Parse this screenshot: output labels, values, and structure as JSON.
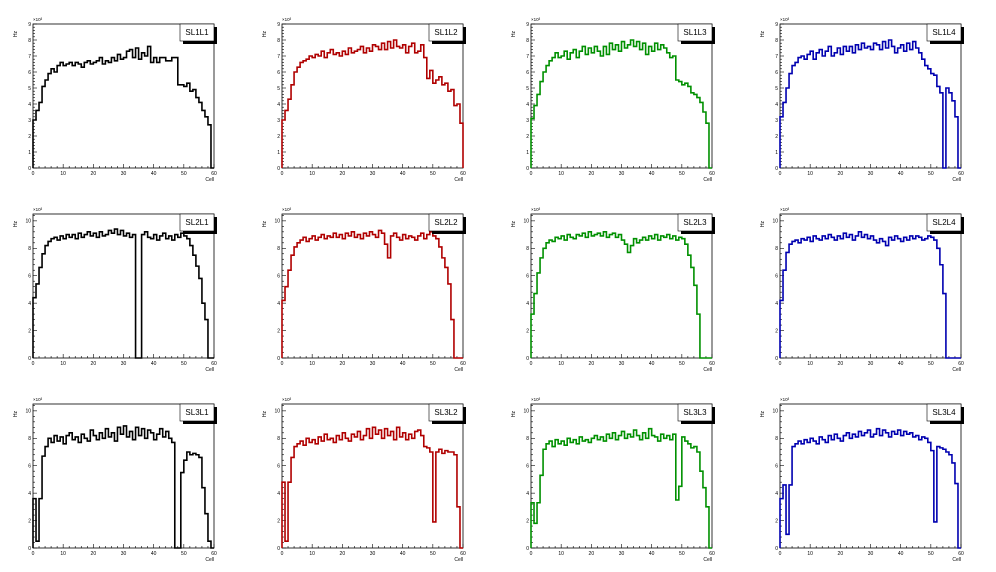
{
  "figure": {
    "xlabel": "Cell",
    "ylabel": "Hz",
    "exponent": "×10³"
  },
  "chart_data": [
    {
      "type": "histogram",
      "title": "SL1L1",
      "color": "#000000",
      "xlabel": "Cell",
      "ylabel": "Hz",
      "xlim": [
        0,
        60
      ],
      "ylim": [
        0,
        9
      ],
      "xticks": [
        0,
        10,
        20,
        30,
        40,
        50,
        60
      ],
      "yticks": [
        1,
        2,
        3,
        4,
        5,
        6,
        7,
        8,
        9
      ],
      "multiplier": "×10³",
      "values": [
        3.0,
        3.6,
        4.1,
        5.1,
        5.5,
        5.9,
        6.2,
        6.0,
        6.4,
        6.6,
        6.4,
        6.5,
        6.6,
        6.4,
        6.6,
        6.5,
        6.3,
        6.6,
        6.7,
        6.5,
        6.6,
        6.7,
        6.9,
        6.5,
        6.7,
        6.6,
        6.9,
        6.7,
        7.1,
        6.8,
        6.9,
        7.3,
        7.4,
        6.9,
        7.5,
        6.8,
        7.2,
        7.0,
        7.6,
        6.6,
        6.9,
        6.6,
        6.9,
        6.9,
        6.7,
        6.7,
        6.9,
        6.9,
        5.2,
        5.2,
        5.1,
        5.3,
        4.8,
        4.9,
        4.4,
        4.1,
        3.6,
        3.2,
        2.7,
        0.0
      ]
    },
    {
      "type": "histogram",
      "title": "SL1L2",
      "color": "#b00000",
      "xlabel": "Cell",
      "ylabel": "Hz",
      "xlim": [
        0,
        60
      ],
      "ylim": [
        0,
        9
      ],
      "xticks": [
        0,
        10,
        20,
        30,
        40,
        50,
        60
      ],
      "yticks": [
        1,
        2,
        3,
        4,
        5,
        6,
        7,
        8,
        9
      ],
      "multiplier": "×10³",
      "values": [
        3.0,
        3.6,
        4.3,
        5.2,
        6.0,
        6.3,
        6.6,
        6.7,
        6.8,
        7.0,
        6.9,
        7.1,
        7.0,
        7.3,
        6.9,
        7.2,
        7.4,
        7.1,
        7.2,
        7.0,
        7.3,
        7.1,
        7.5,
        7.2,
        7.3,
        7.4,
        7.6,
        7.2,
        7.5,
        7.3,
        7.7,
        7.6,
        7.4,
        7.8,
        7.4,
        7.9,
        7.5,
        8.0,
        7.6,
        7.5,
        7.7,
        7.2,
        7.6,
        7.8,
        7.2,
        7.3,
        7.7,
        6.9,
        5.6,
        6.1,
        5.3,
        5.5,
        5.7,
        5.2,
        5.3,
        4.8,
        4.9,
        3.9,
        4.0,
        2.8
      ]
    },
    {
      "type": "histogram",
      "title": "SL1L3",
      "color": "#009000",
      "xlabel": "Cell",
      "ylabel": "Hz",
      "xlim": [
        0,
        60
      ],
      "ylim": [
        0,
        9
      ],
      "xticks": [
        0,
        10,
        20,
        30,
        40,
        50,
        60
      ],
      "yticks": [
        1,
        2,
        3,
        4,
        5,
        6,
        7,
        8,
        9
      ],
      "multiplier": "×10³",
      "values": [
        3.1,
        3.9,
        4.6,
        5.4,
        6.0,
        6.4,
        6.7,
        6.9,
        7.2,
        6.9,
        7.0,
        7.3,
        6.8,
        7.2,
        7.4,
        6.9,
        7.3,
        7.6,
        7.1,
        7.5,
        7.2,
        7.6,
        7.3,
        7.0,
        7.6,
        7.1,
        7.8,
        7.4,
        7.7,
        7.3,
        7.9,
        7.5,
        7.7,
        8.0,
        7.6,
        7.9,
        7.4,
        7.8,
        7.1,
        7.6,
        7.3,
        7.8,
        7.4,
        7.7,
        7.5,
        7.2,
        6.9,
        7.0,
        5.5,
        5.4,
        5.2,
        5.3,
        5.1,
        4.7,
        4.6,
        4.4,
        4.1,
        3.5,
        2.8,
        0.0
      ]
    },
    {
      "type": "histogram",
      "title": "SL1L4",
      "color": "#0000b0",
      "xlabel": "Cell",
      "ylabel": "Hz",
      "xlim": [
        0,
        60
      ],
      "ylim": [
        0,
        9
      ],
      "xticks": [
        0,
        10,
        20,
        30,
        40,
        50,
        60
      ],
      "yticks": [
        1,
        2,
        3,
        4,
        5,
        6,
        7,
        8,
        9
      ],
      "multiplier": "×10³",
      "values": [
        3.2,
        4.1,
        5.0,
        5.9,
        6.4,
        6.6,
        6.9,
        7.0,
        6.8,
        7.1,
        7.3,
        6.8,
        7.2,
        7.4,
        7.0,
        7.3,
        7.6,
        7.0,
        7.2,
        7.5,
        7.1,
        7.6,
        7.3,
        7.6,
        7.2,
        7.7,
        7.4,
        7.8,
        7.5,
        7.6,
        7.4,
        7.8,
        7.7,
        7.4,
        7.9,
        7.5,
        8.0,
        7.6,
        7.2,
        7.5,
        7.7,
        7.3,
        7.8,
        7.4,
        7.9,
        7.5,
        7.2,
        6.8,
        6.4,
        6.2,
        5.9,
        5.8,
        5.1,
        4.7,
        0.0,
        5.0,
        4.7,
        4.2,
        3.2,
        0.0
      ]
    },
    {
      "type": "histogram",
      "title": "SL2L1",
      "color": "#000000",
      "xlabel": "Cell",
      "ylabel": "Hz",
      "xlim": [
        0,
        60
      ],
      "ylim": [
        0,
        10.5
      ],
      "xticks": [
        0,
        10,
        20,
        30,
        40,
        50,
        60
      ],
      "yticks": [
        2,
        4,
        6,
        8,
        10
      ],
      "multiplier": "×10³",
      "values": [
        4.4,
        5.4,
        6.6,
        7.6,
        8.2,
        8.5,
        8.7,
        8.8,
        8.6,
        8.9,
        8.7,
        9.0,
        8.8,
        9.0,
        8.7,
        9.1,
        8.8,
        9.0,
        9.2,
        8.9,
        9.1,
        8.8,
        9.2,
        8.9,
        9.0,
        9.3,
        9.1,
        9.4,
        9.0,
        9.3,
        8.9,
        9.1,
        8.8,
        9.0,
        0.0,
        0.0,
        9.0,
        9.2,
        8.8,
        8.7,
        9.0,
        8.6,
        8.9,
        9.1,
        8.7,
        8.9,
        8.6,
        9.0,
        8.8,
        9.1,
        8.9,
        8.7,
        8.2,
        7.5,
        6.7,
        5.8,
        4.0,
        2.8,
        0.0,
        0.0
      ]
    },
    {
      "type": "histogram",
      "title": "SL2L2",
      "color": "#b00000",
      "xlabel": "Cell",
      "ylabel": "Hz",
      "xlim": [
        0,
        60
      ],
      "ylim": [
        0,
        10.5
      ],
      "xticks": [
        0,
        10,
        20,
        30,
        40,
        50,
        60
      ],
      "yticks": [
        2,
        4,
        6,
        8,
        10
      ],
      "multiplier": "×10³",
      "values": [
        4.2,
        5.2,
        6.4,
        7.5,
        8.1,
        8.4,
        8.6,
        8.8,
        8.5,
        8.7,
        8.9,
        8.6,
        8.8,
        9.0,
        8.7,
        8.9,
        8.8,
        9.1,
        8.8,
        9.0,
        8.7,
        9.1,
        8.9,
        9.2,
        8.8,
        9.0,
        8.7,
        9.1,
        8.9,
        9.2,
        9.0,
        8.8,
        9.3,
        9.1,
        8.3,
        7.3,
        8.9,
        9.1,
        8.8,
        8.6,
        9.0,
        8.7,
        8.9,
        8.8,
        8.6,
        8.9,
        9.1,
        8.7,
        9.0,
        9.2,
        8.9,
        8.7,
        8.1,
        7.3,
        6.6,
        5.4,
        2.8,
        0.0,
        0.0,
        0.0
      ]
    },
    {
      "type": "histogram",
      "title": "SL2L3",
      "color": "#009000",
      "xlabel": "Cell",
      "ylabel": "Hz",
      "xlim": [
        0,
        60
      ],
      "ylim": [
        0,
        10.5
      ],
      "xticks": [
        0,
        10,
        20,
        30,
        40,
        50,
        60
      ],
      "yticks": [
        2,
        4,
        6,
        8,
        10
      ],
      "multiplier": "×10³",
      "values": [
        3.2,
        4.7,
        6.2,
        7.3,
        8.0,
        8.4,
        8.6,
        8.5,
        8.8,
        8.7,
        8.9,
        8.6,
        9.0,
        8.8,
        8.7,
        9.0,
        8.9,
        9.1,
        8.8,
        9.2,
        8.9,
        9.0,
        9.1,
        8.9,
        9.2,
        8.8,
        9.0,
        9.1,
        8.8,
        9.0,
        8.6,
        8.3,
        7.7,
        8.2,
        8.7,
        8.4,
        8.6,
        8.8,
        8.6,
        8.9,
        8.7,
        9.0,
        8.6,
        8.9,
        8.8,
        9.0,
        8.7,
        8.9,
        8.6,
        8.8,
        8.7,
        8.3,
        7.5,
        6.6,
        5.3,
        3.2,
        0.0,
        0.0,
        0.0,
        0.0
      ]
    },
    {
      "type": "histogram",
      "title": "SL2L4",
      "color": "#0000b0",
      "xlabel": "Cell",
      "ylabel": "Hz",
      "xlim": [
        0,
        60
      ],
      "ylim": [
        0,
        10.5
      ],
      "xticks": [
        0,
        10,
        20,
        30,
        40,
        50,
        60
      ],
      "yticks": [
        2,
        4,
        6,
        8,
        10
      ],
      "multiplier": "×10³",
      "values": [
        4.2,
        6.4,
        7.7,
        8.3,
        8.5,
        8.6,
        8.4,
        8.7,
        8.6,
        8.8,
        8.5,
        8.9,
        8.7,
        8.6,
        8.9,
        8.7,
        9.0,
        8.8,
        8.6,
        8.9,
        8.7,
        9.1,
        8.8,
        9.0,
        8.6,
        8.9,
        9.2,
        8.8,
        9.0,
        8.7,
        8.9,
        8.6,
        8.4,
        8.7,
        8.5,
        8.2,
        8.8,
        8.6,
        8.9,
        8.7,
        8.5,
        8.8,
        8.6,
        8.9,
        8.7,
        8.9,
        8.8,
        8.6,
        8.7,
        8.9,
        8.8,
        8.6,
        8.0,
        6.8,
        4.7,
        0.0,
        0.0,
        0.0,
        0.0,
        0.0
      ]
    },
    {
      "type": "histogram",
      "title": "SL3L1",
      "color": "#000000",
      "xlabel": "Cell",
      "ylabel": "Hz",
      "xlim": [
        0,
        60
      ],
      "ylim": [
        0,
        10.5
      ],
      "xticks": [
        0,
        10,
        20,
        30,
        40,
        50,
        60
      ],
      "yticks": [
        2,
        4,
        6,
        8,
        10
      ],
      "multiplier": "×10³",
      "values": [
        3.6,
        0.5,
        3.6,
        6.7,
        7.4,
        8.0,
        7.7,
        8.2,
        7.8,
        8.1,
        7.6,
        8.2,
        8.4,
        7.9,
        8.1,
        7.7,
        8.3,
        8.0,
        7.8,
        8.6,
        8.2,
        7.9,
        8.4,
        8.0,
        8.7,
        8.1,
        8.4,
        7.8,
        8.8,
        8.3,
        8.9,
        8.1,
        8.5,
        7.9,
        8.8,
        8.2,
        8.7,
        8.0,
        8.6,
        8.4,
        7.9,
        8.3,
        8.7,
        8.1,
        8.5,
        8.0,
        7.7,
        0.0,
        0.0,
        5.5,
        6.4,
        7.0,
        6.8,
        6.9,
        6.8,
        6.6,
        4.4,
        2.5,
        0.5,
        0.0
      ]
    },
    {
      "type": "histogram",
      "title": "SL3L2",
      "color": "#b00000",
      "xlabel": "Cell",
      "ylabel": "Hz",
      "xlim": [
        0,
        60
      ],
      "ylim": [
        0,
        10.5
      ],
      "xticks": [
        0,
        10,
        20,
        30,
        40,
        50,
        60
      ],
      "yticks": [
        2,
        4,
        6,
        8,
        10
      ],
      "multiplier": "×10³",
      "values": [
        4.8,
        0.5,
        4.8,
        6.6,
        7.4,
        7.6,
        7.8,
        7.5,
        8.0,
        7.7,
        7.9,
        7.6,
        8.1,
        7.8,
        8.3,
        7.9,
        8.0,
        7.7,
        8.2,
        7.9,
        8.4,
        8.0,
        7.8,
        8.3,
        8.1,
        8.5,
        7.9,
        8.2,
        8.7,
        8.0,
        8.8,
        8.3,
        8.6,
        8.0,
        8.7,
        8.2,
        8.5,
        7.9,
        8.8,
        8.1,
        8.4,
        7.9,
        8.3,
        8.0,
        8.5,
        8.6,
        8.2,
        7.4,
        7.3,
        7.0,
        1.9,
        7.0,
        7.2,
        6.9,
        7.1,
        7.0,
        7.0,
        6.8,
        3.0,
        0.0
      ]
    },
    {
      "type": "histogram",
      "title": "SL3L3",
      "color": "#009000",
      "xlabel": "Cell",
      "ylabel": "Hz",
      "xlim": [
        0,
        60
      ],
      "ylim": [
        0,
        10.5
      ],
      "xticks": [
        0,
        10,
        20,
        30,
        40,
        50,
        60
      ],
      "yticks": [
        2,
        4,
        6,
        8,
        10
      ],
      "multiplier": "×10³",
      "values": [
        3.3,
        1.8,
        3.3,
        5.3,
        7.2,
        7.6,
        7.8,
        7.4,
        7.9,
        7.6,
        7.8,
        7.5,
        8.0,
        7.7,
        7.9,
        7.6,
        8.1,
        7.8,
        7.9,
        7.7,
        8.0,
        8.2,
        7.9,
        8.1,
        7.8,
        8.3,
        8.0,
        8.4,
        7.9,
        8.2,
        8.5,
        8.0,
        8.3,
        8.1,
        8.6,
        8.2,
        7.9,
        8.4,
        8.0,
        8.7,
        8.2,
        8.1,
        7.8,
        8.3,
        8.0,
        8.2,
        7.9,
        8.3,
        3.5,
        4.5,
        8.1,
        7.8,
        7.6,
        7.3,
        7.4,
        7.0,
        5.6,
        4.4,
        3.0,
        0.0
      ]
    },
    {
      "type": "histogram",
      "title": "SL3L4",
      "color": "#0000b0",
      "xlabel": "Cell",
      "ylabel": "Hz",
      "xlim": [
        0,
        60
      ],
      "ylim": [
        0,
        10.5
      ],
      "xticks": [
        0,
        10,
        20,
        30,
        40,
        50,
        60
      ],
      "yticks": [
        2,
        4,
        6,
        8,
        10
      ],
      "multiplier": "×10³",
      "values": [
        3.6,
        4.6,
        1.0,
        4.6,
        7.4,
        7.6,
        7.8,
        7.6,
        7.9,
        7.7,
        8.0,
        7.8,
        7.6,
        8.1,
        7.9,
        7.7,
        8.2,
        7.9,
        8.3,
        8.0,
        7.8,
        8.2,
        8.4,
        8.0,
        8.3,
        8.1,
        8.5,
        8.2,
        8.4,
        8.6,
        8.1,
        8.3,
        8.7,
        8.2,
        8.6,
        8.4,
        8.1,
        8.5,
        8.3,
        8.6,
        8.2,
        8.5,
        8.3,
        8.4,
        8.1,
        8.2,
        7.9,
        8.1,
        8.0,
        7.7,
        7.1,
        1.9,
        7.4,
        7.3,
        7.2,
        7.0,
        6.8,
        6.2,
        4.7,
        0.0
      ]
    }
  ]
}
